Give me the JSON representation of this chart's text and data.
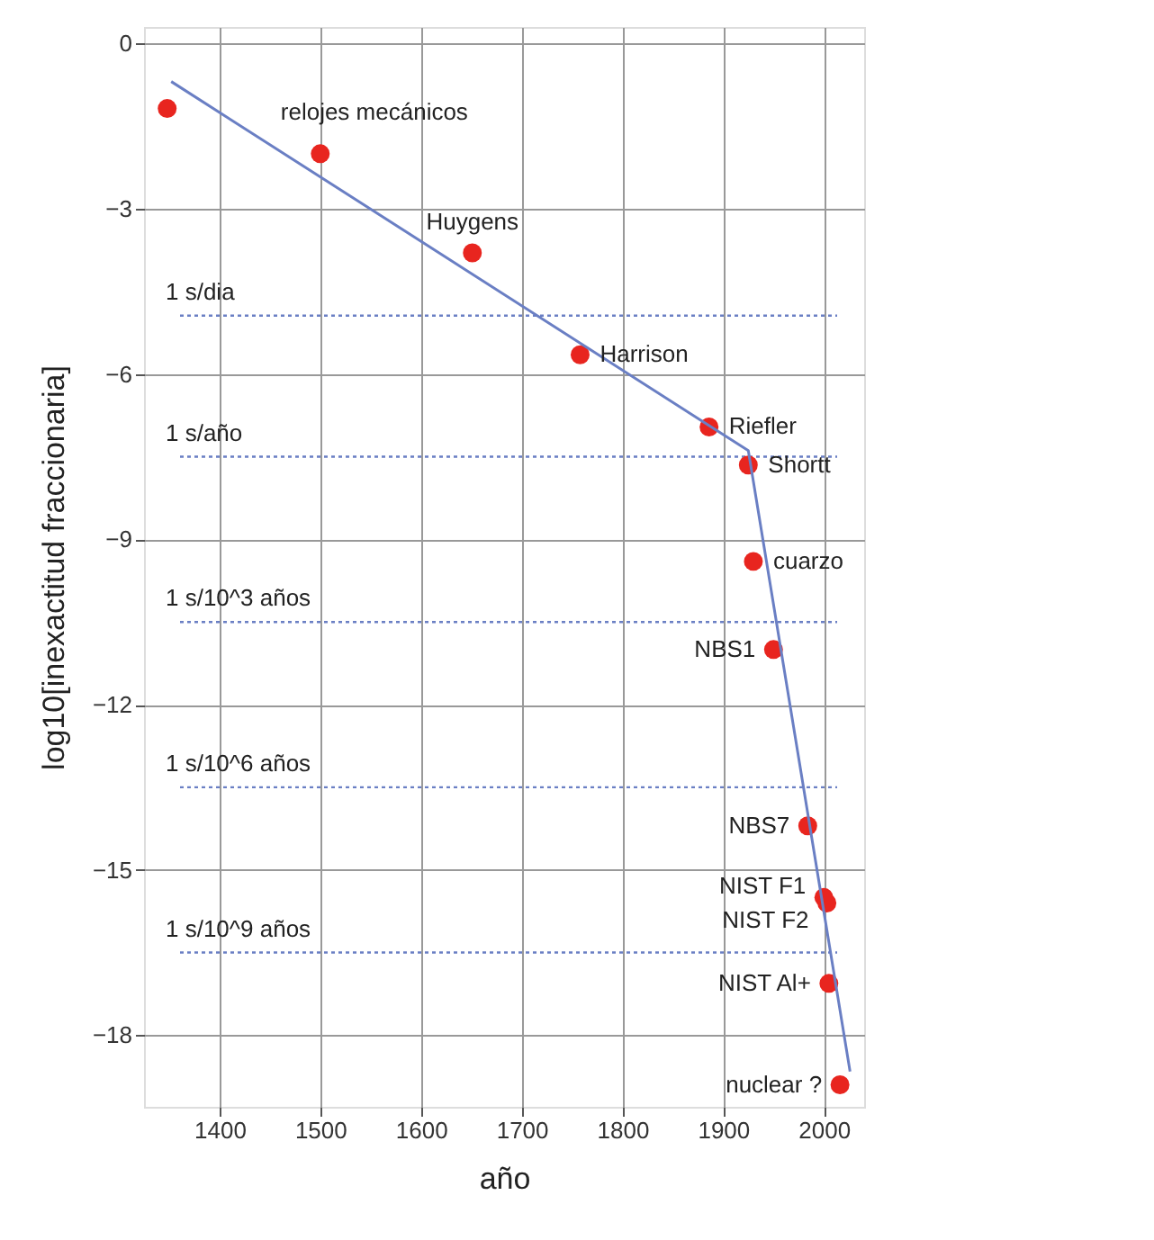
{
  "chart_data": {
    "type": "scatter",
    "xlabel": "año",
    "ylabel": "log10[inexactitud fraccionaria]",
    "x": [
      1348,
      1500,
      1651,
      1758,
      1886,
      1925,
      1930,
      1950,
      1984,
      2000,
      2003,
      2005,
      2016
    ],
    "series": [
      {
        "color": "#e8251f",
        "values": [
          -1.18,
          -2.0,
          -3.8,
          -5.65,
          -6.96,
          -7.65,
          -9.4,
          -11.0,
          -14.2,
          -15.5,
          -15.6,
          -17.06,
          -18.9
        ]
      },
      {
        "type": "line",
        "marker": "none",
        "color": "#6a7fc4",
        "x": [
          1352,
          1925,
          2026
        ],
        "values": [
          -0.69,
          -7.39,
          -18.66
        ]
      }
    ],
    "marker": "circle",
    "xlim": [
      1325,
      2040
    ],
    "ylim": [
      -19.3,
      0.3
    ],
    "xticks": [
      1400,
      1500,
      1600,
      1700,
      1800,
      1900,
      2000
    ],
    "yticks": [
      0,
      -3,
      -6,
      -9,
      -12,
      -15,
      -18
    ],
    "grid": true,
    "ref_lines": [
      {
        "axis": "y",
        "value": -4.94,
        "label": "1 s/dia",
        "color": "#6a7fc4",
        "line_style": "dotted"
      },
      {
        "axis": "y",
        "value": -7.5,
        "label": "1 s/año",
        "color": "#6a7fc4",
        "line_style": "dotted"
      },
      {
        "axis": "y",
        "value": -10.5,
        "label": "1 s/10^3 años",
        "color": "#6a7fc4",
        "line_style": "dotted"
      },
      {
        "axis": "y",
        "value": -13.5,
        "label": "1 s/10^6 años",
        "color": "#6a7fc4",
        "line_style": "dotted"
      },
      {
        "axis": "y",
        "value": -16.5,
        "label": "1 s/10^9 años",
        "color": "#6a7fc4",
        "line_style": "dotted"
      }
    ],
    "annotations": [
      {
        "text": "relojes mecánicos",
        "x": 1500,
        "y": -2.0
      },
      {
        "text": "Huygens",
        "x": 1651,
        "y": -3.8
      },
      {
        "text": "Harrison",
        "x": 1758,
        "y": -5.65
      },
      {
        "text": "Riefler",
        "x": 1886,
        "y": -6.96
      },
      {
        "text": "Shortt",
        "x": 1925,
        "y": -7.65
      },
      {
        "text": "cuarzo",
        "x": 1930,
        "y": -9.4
      },
      {
        "text": "NBS1",
        "x": 1950,
        "y": -11.0
      },
      {
        "text": "NBS7",
        "x": 1984,
        "y": -14.2
      },
      {
        "text": "NIST F1",
        "x": 2000,
        "y": -15.5
      },
      {
        "text": "NIST F2",
        "x": 2003,
        "y": -15.6
      },
      {
        "text": "NIST Al+",
        "x": 2005,
        "y": -17.06
      },
      {
        "text": "nuclear ?",
        "x": 2016,
        "y": -18.9
      }
    ]
  }
}
